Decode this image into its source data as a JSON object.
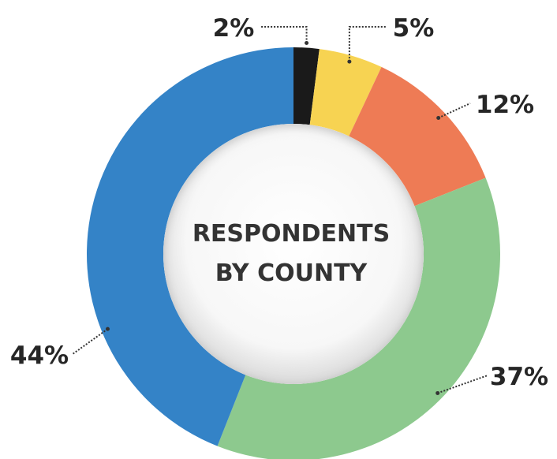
{
  "chart_data": {
    "type": "pie",
    "variant": "donut",
    "title": "RESPONDENTS BY COUNTY",
    "title_lines": [
      "RESPONDENTS",
      "BY COUNTY"
    ],
    "slices": [
      {
        "value": 2,
        "label": "2%",
        "color": "#1a1a1a"
      },
      {
        "value": 5,
        "label": "5%",
        "color": "#f7d352"
      },
      {
        "value": 12,
        "label": "12%",
        "color": "#ee7b55"
      },
      {
        "value": 37,
        "label": "37%",
        "color": "#8dc98e"
      },
      {
        "value": 44,
        "label": "44%",
        "color": "#3483c7"
      }
    ],
    "start_angle_deg": 0,
    "direction": "clockwise",
    "legend": "none"
  }
}
